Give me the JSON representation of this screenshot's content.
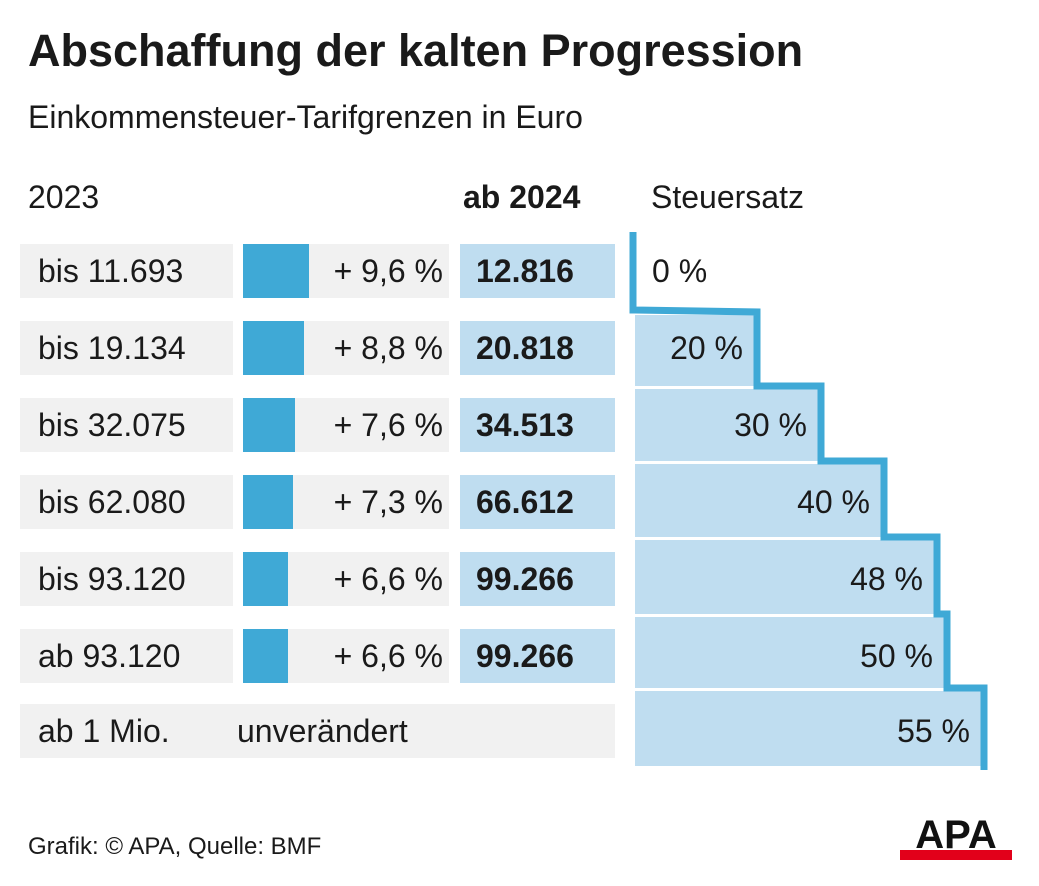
{
  "header": {
    "title": "Abschaffung der kalten Progression",
    "subtitle": "Einkommensteuer-Tarifgrenzen in Euro"
  },
  "columns": {
    "year_old": "2023",
    "year_new": "ab 2024",
    "rate": "Steuersatz"
  },
  "rows": [
    {
      "old": "bis 11.693",
      "pct": "+ 9,6 %",
      "new": "12.816",
      "rate": "0 %"
    },
    {
      "old": "bis 19.134",
      "pct": "+ 8,8 %",
      "new": "20.818",
      "rate": "20 %"
    },
    {
      "old": "bis 32.075",
      "pct": "+ 7,6 %",
      "new": "34.513",
      "rate": "30 %"
    },
    {
      "old": "bis 62.080",
      "pct": "+ 7,3 %",
      "new": "66.612",
      "rate": "40 %"
    },
    {
      "old": "bis 93.120",
      "pct": "+ 6,6 %",
      "new": "99.266",
      "rate": "48 %"
    },
    {
      "old": "ab 93.120",
      "pct": "+ 6,6 %",
      "new": "99.266",
      "rate": "50 %"
    }
  ],
  "last_row": {
    "old": "ab 1 Mio.",
    "change": "unverändert",
    "rate": "55 %"
  },
  "footer": {
    "credit": "Grafik: © APA, Quelle: BMF"
  },
  "logo": {
    "text": "APA"
  },
  "colors": {
    "bar": "#3fa9d6",
    "light_blue": "#bfddf0",
    "grey": "#f1f1f1",
    "step_line": "#3fa9d6",
    "logo_red": "#e2001a"
  },
  "chart_data": {
    "type": "bar",
    "categories": [
      "bis 11.693",
      "bis 19.134",
      "bis 32.075",
      "bis 62.080",
      "bis 93.120",
      "ab 93.120"
    ],
    "values": [
      9.6,
      8.8,
      7.6,
      7.3,
      6.6,
      6.6
    ],
    "new_thresholds": [
      12816,
      20818,
      34513,
      66612,
      99266,
      99266
    ],
    "tax_rates": [
      0,
      20,
      30,
      40,
      48,
      50,
      55
    ],
    "title": "Abschaffung der kalten Progression",
    "subtitle": "Einkommensteuer-Tarifgrenzen in Euro"
  }
}
